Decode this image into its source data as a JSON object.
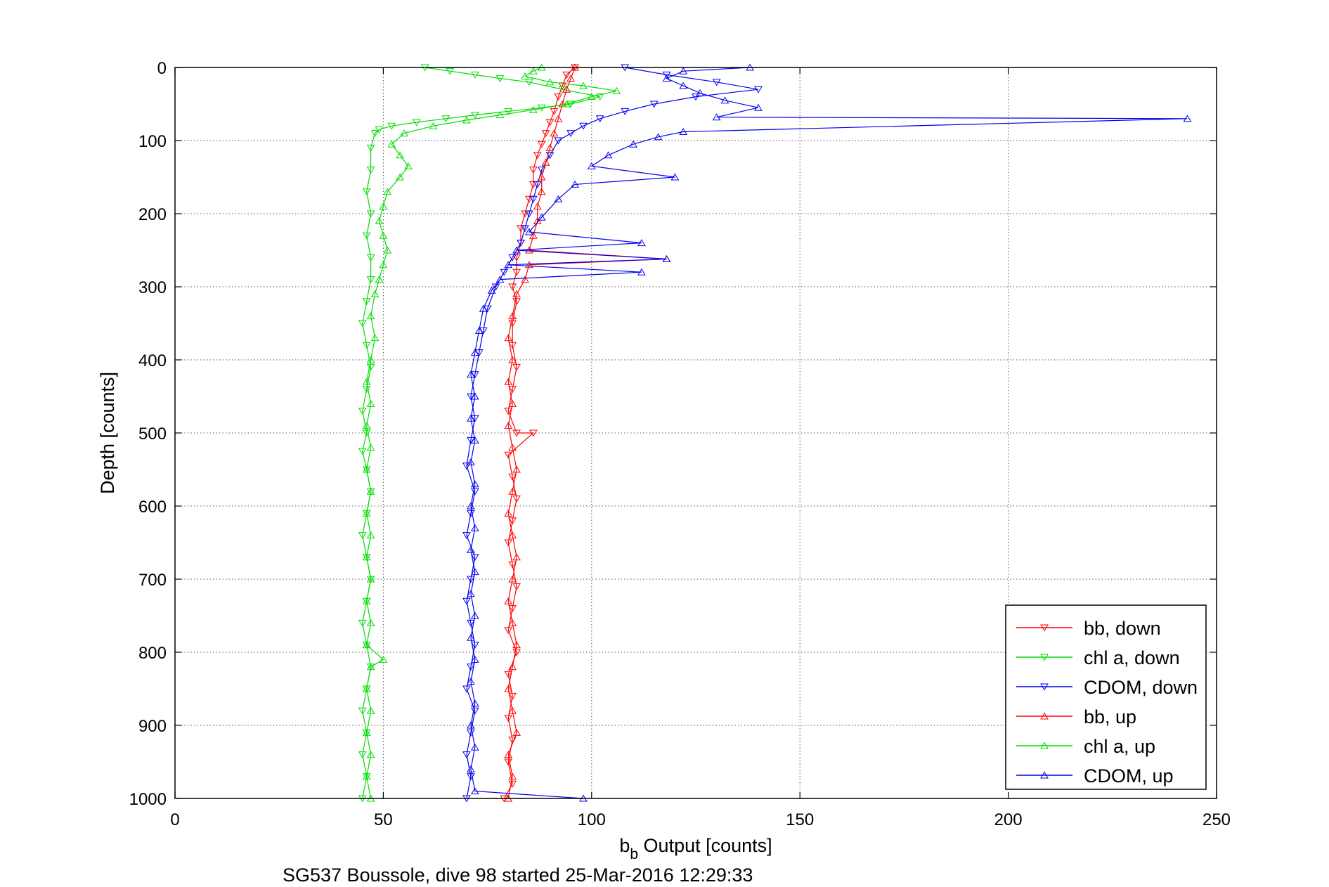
{
  "chart_data": {
    "type": "scatter",
    "xlabel_main": "b",
    "xlabel_sub": "b",
    "xlabel_rest": " Output [counts]",
    "ylabel": "Depth [counts]",
    "caption": "SG537 Boussole, dive 98 started 25-Mar-2016 12:29:33",
    "xlim": [
      0,
      250
    ],
    "ylim": [
      0,
      1000
    ],
    "y_reversed": true,
    "grid": true,
    "legend_position": "bottom-right",
    "x_ticks": [
      "0",
      "50",
      "100",
      "150",
      "200",
      "250"
    ],
    "y_ticks": [
      "0",
      "100",
      "200",
      "300",
      "400",
      "500",
      "600",
      "700",
      "800",
      "900",
      "1000"
    ],
    "series": [
      {
        "name": "bb, down",
        "color": "#ff0000",
        "marker": "triangle-down",
        "points": [
          [
            96,
            0
          ],
          [
            94,
            10
          ],
          [
            93,
            25
          ],
          [
            92,
            40
          ],
          [
            91,
            60
          ],
          [
            90,
            75
          ],
          [
            89,
            90
          ],
          [
            88,
            105
          ],
          [
            87,
            120
          ],
          [
            86,
            140
          ],
          [
            86,
            160
          ],
          [
            85,
            180
          ],
          [
            84,
            200
          ],
          [
            83,
            220
          ],
          [
            83,
            240
          ],
          [
            82,
            260
          ],
          [
            82,
            280
          ],
          [
            81,
            300
          ],
          [
            82,
            320
          ],
          [
            81,
            350
          ],
          [
            81,
            380
          ],
          [
            82,
            410
          ],
          [
            81,
            440
          ],
          [
            80,
            470
          ],
          [
            82,
            500
          ],
          [
            86,
            500
          ],
          [
            80,
            530
          ],
          [
            81,
            560
          ],
          [
            82,
            590
          ],
          [
            81,
            620
          ],
          [
            80,
            650
          ],
          [
            81,
            680
          ],
          [
            82,
            710
          ],
          [
            81,
            740
          ],
          [
            80,
            770
          ],
          [
            82,
            800
          ],
          [
            80,
            830
          ],
          [
            81,
            860
          ],
          [
            80,
            890
          ],
          [
            81,
            920
          ],
          [
            80,
            950
          ],
          [
            81,
            980
          ],
          [
            79,
            1000
          ]
        ]
      },
      {
        "name": "chl a, down",
        "color": "#00dd00",
        "marker": "triangle-down",
        "points": [
          [
            60,
            0
          ],
          [
            66,
            5
          ],
          [
            72,
            10
          ],
          [
            78,
            15
          ],
          [
            85,
            20
          ],
          [
            93,
            30
          ],
          [
            102,
            40
          ],
          [
            95,
            50
          ],
          [
            88,
            55
          ],
          [
            80,
            60
          ],
          [
            72,
            65
          ],
          [
            65,
            70
          ],
          [
            58,
            75
          ],
          [
            52,
            80
          ],
          [
            49,
            85
          ],
          [
            48,
            90
          ],
          [
            47,
            110
          ],
          [
            47,
            140
          ],
          [
            46,
            170
          ],
          [
            47,
            200
          ],
          [
            46,
            230
          ],
          [
            47,
            260
          ],
          [
            47,
            290
          ],
          [
            46,
            320
          ],
          [
            45,
            350
          ],
          [
            46,
            380
          ],
          [
            47,
            410
          ],
          [
            46,
            440
          ],
          [
            45,
            470
          ],
          [
            46,
            500
          ],
          [
            45,
            525
          ],
          [
            46,
            550
          ],
          [
            47,
            580
          ],
          [
            46,
            610
          ],
          [
            45,
            640
          ],
          [
            46,
            670
          ],
          [
            47,
            700
          ],
          [
            46,
            730
          ],
          [
            45,
            760
          ],
          [
            46,
            790
          ],
          [
            47,
            820
          ],
          [
            46,
            850
          ],
          [
            45,
            880
          ],
          [
            46,
            910
          ],
          [
            45,
            940
          ],
          [
            46,
            970
          ],
          [
            45,
            1000
          ]
        ]
      },
      {
        "name": "CDOM, down",
        "color": "#0000ee",
        "marker": "triangle-down",
        "points": [
          [
            108,
            0
          ],
          [
            118,
            10
          ],
          [
            130,
            20
          ],
          [
            140,
            30
          ],
          [
            125,
            40
          ],
          [
            115,
            50
          ],
          [
            108,
            60
          ],
          [
            102,
            70
          ],
          [
            98,
            80
          ],
          [
            95,
            90
          ],
          [
            92,
            100
          ],
          [
            90,
            120
          ],
          [
            88,
            140
          ],
          [
            87,
            160
          ],
          [
            86,
            180
          ],
          [
            85,
            200
          ],
          [
            84,
            220
          ],
          [
            83,
            240
          ],
          [
            81,
            260
          ],
          [
            79,
            280
          ],
          [
            77,
            300
          ],
          [
            75,
            330
          ],
          [
            74,
            360
          ],
          [
            73,
            390
          ],
          [
            72,
            420
          ],
          [
            71,
            450
          ],
          [
            72,
            480
          ],
          [
            71,
            510
          ],
          [
            70,
            545
          ],
          [
            72,
            580
          ],
          [
            71,
            610
          ],
          [
            70,
            640
          ],
          [
            72,
            670
          ],
          [
            71,
            700
          ],
          [
            70,
            730
          ],
          [
            71,
            760
          ],
          [
            72,
            790
          ],
          [
            71,
            820
          ],
          [
            70,
            850
          ],
          [
            72,
            880
          ],
          [
            71,
            910
          ],
          [
            70,
            940
          ],
          [
            71,
            970
          ],
          [
            70,
            1000
          ]
        ]
      },
      {
        "name": "bb, up",
        "color": "#ff0000",
        "marker": "triangle-up",
        "points": [
          [
            80,
            1000
          ],
          [
            81,
            970
          ],
          [
            80,
            940
          ],
          [
            82,
            910
          ],
          [
            81,
            880
          ],
          [
            80,
            850
          ],
          [
            81,
            820
          ],
          [
            82,
            790
          ],
          [
            81,
            760
          ],
          [
            80,
            730
          ],
          [
            81,
            700
          ],
          [
            82,
            670
          ],
          [
            81,
            640
          ],
          [
            80,
            610
          ],
          [
            81,
            580
          ],
          [
            82,
            550
          ],
          [
            81,
            520
          ],
          [
            80,
            490
          ],
          [
            81,
            460
          ],
          [
            80,
            430
          ],
          [
            81,
            400
          ],
          [
            80,
            370
          ],
          [
            81,
            340
          ],
          [
            82,
            310
          ],
          [
            84,
            290
          ],
          [
            85,
            270
          ],
          [
            118,
            262
          ],
          [
            85,
            250
          ],
          [
            86,
            230
          ],
          [
            87,
            210
          ],
          [
            87,
            190
          ],
          [
            88,
            170
          ],
          [
            88,
            150
          ],
          [
            89,
            130
          ],
          [
            90,
            110
          ],
          [
            91,
            90
          ],
          [
            92,
            70
          ],
          [
            93,
            50
          ],
          [
            94,
            30
          ],
          [
            95,
            15
          ],
          [
            96,
            0
          ]
        ]
      },
      {
        "name": "chl a, up",
        "color": "#00dd00",
        "marker": "triangle-up",
        "points": [
          [
            47,
            1000
          ],
          [
            46,
            970
          ],
          [
            47,
            940
          ],
          [
            46,
            910
          ],
          [
            47,
            880
          ],
          [
            46,
            850
          ],
          [
            47,
            820
          ],
          [
            50,
            810
          ],
          [
            46,
            790
          ],
          [
            47,
            760
          ],
          [
            46,
            730
          ],
          [
            47,
            700
          ],
          [
            46,
            670
          ],
          [
            47,
            640
          ],
          [
            46,
            610
          ],
          [
            47,
            580
          ],
          [
            46,
            550
          ],
          [
            47,
            520
          ],
          [
            46,
            490
          ],
          [
            47,
            460
          ],
          [
            46,
            430
          ],
          [
            47,
            400
          ],
          [
            48,
            370
          ],
          [
            47,
            340
          ],
          [
            48,
            310
          ],
          [
            49,
            290
          ],
          [
            50,
            270
          ],
          [
            51,
            250
          ],
          [
            50,
            230
          ],
          [
            49,
            210
          ],
          [
            50,
            190
          ],
          [
            51,
            170
          ],
          [
            54,
            150
          ],
          [
            56,
            135
          ],
          [
            54,
            120
          ],
          [
            52,
            105
          ],
          [
            55,
            90
          ],
          [
            62,
            80
          ],
          [
            70,
            72
          ],
          [
            78,
            65
          ],
          [
            86,
            58
          ],
          [
            94,
            50
          ],
          [
            100,
            40
          ],
          [
            106,
            32
          ],
          [
            98,
            25
          ],
          [
            90,
            20
          ],
          [
            84,
            12
          ],
          [
            86,
            5
          ],
          [
            88,
            0
          ]
        ]
      },
      {
        "name": "CDOM, up",
        "color": "#0000ee",
        "marker": "triangle-up",
        "points": [
          [
            98,
            1000
          ],
          [
            72,
            990
          ],
          [
            71,
            960
          ],
          [
            72,
            930
          ],
          [
            71,
            900
          ],
          [
            72,
            870
          ],
          [
            71,
            840
          ],
          [
            72,
            810
          ],
          [
            71,
            780
          ],
          [
            72,
            750
          ],
          [
            71,
            720
          ],
          [
            72,
            690
          ],
          [
            71,
            660
          ],
          [
            72,
            630
          ],
          [
            71,
            600
          ],
          [
            72,
            570
          ],
          [
            71,
            540
          ],
          [
            72,
            510
          ],
          [
            71,
            480
          ],
          [
            72,
            450
          ],
          [
            71,
            420
          ],
          [
            72,
            390
          ],
          [
            73,
            360
          ],
          [
            74,
            330
          ],
          [
            76,
            305
          ],
          [
            78,
            290
          ],
          [
            112,
            280
          ],
          [
            80,
            270
          ],
          [
            118,
            262
          ],
          [
            82,
            250
          ],
          [
            112,
            240
          ],
          [
            85,
            225
          ],
          [
            88,
            205
          ],
          [
            92,
            180
          ],
          [
            96,
            160
          ],
          [
            120,
            150
          ],
          [
            100,
            135
          ],
          [
            104,
            120
          ],
          [
            110,
            105
          ],
          [
            116,
            95
          ],
          [
            122,
            88
          ],
          [
            243,
            70
          ],
          [
            130,
            68
          ],
          [
            140,
            55
          ],
          [
            132,
            45
          ],
          [
            126,
            35
          ],
          [
            122,
            25
          ],
          [
            118,
            15
          ],
          [
            122,
            5
          ],
          [
            138,
            0
          ]
        ]
      }
    ]
  }
}
